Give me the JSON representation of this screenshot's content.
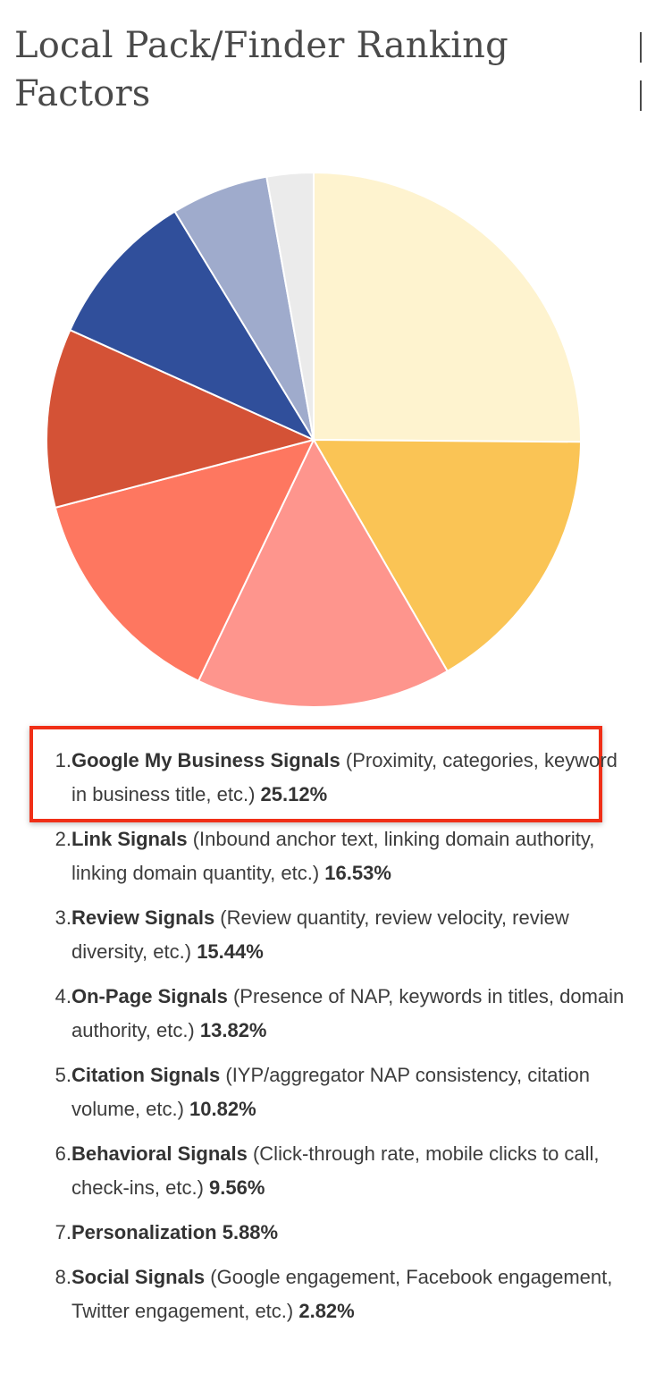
{
  "title": "Local Pack/Finder Ranking Factors",
  "colors": {
    "highlight": "#f02f17",
    "slices": [
      "#fef3cf",
      "#fac455",
      "#fe958d",
      "#fe7760",
      "#d45236",
      "#304f9b",
      "#9fabcc",
      "#ebebeb"
    ]
  },
  "chart_data": {
    "type": "pie",
    "title": "Local Pack/Finder Ranking Factors",
    "start_angle": "12 o'clock",
    "direction": "clockwise",
    "legend_placement": "below",
    "categories": [
      "Google My Business Signals",
      "Link Signals",
      "Review Signals",
      "On-Page Signals",
      "Citation Signals",
      "Behavioral Signals",
      "Personalization",
      "Social Signals"
    ],
    "values": [
      25.12,
      16.53,
      15.44,
      13.82,
      10.82,
      9.56,
      5.88,
      2.82
    ],
    "unit": "%"
  },
  "factors": [
    {
      "num": "1.",
      "name": "Google My Business Signals",
      "desc": " (Proximity, categories, keyword in business title, etc.) ",
      "pct": "25.12%"
    },
    {
      "num": "2.",
      "name": "Link Signals",
      "desc": " (Inbound anchor text, linking domain authority, linking domain quantity, etc.) ",
      "pct": "16.53%"
    },
    {
      "num": "3.",
      "name": "Review Signals",
      "desc": " (Review quantity, review velocity, review diversity, etc.) ",
      "pct": "15.44%"
    },
    {
      "num": "4.",
      "name": "On-Page Signals",
      "desc": " (Presence of NAP, keywords in titles, domain authority, etc.) ",
      "pct": "13.82%"
    },
    {
      "num": "5.",
      "name": "Citation Signals",
      "desc": " (IYP/aggregator NAP consistency, citation volume, etc.) ",
      "pct": "10.82%"
    },
    {
      "num": "6.",
      "name": "Behavioral Signals",
      "desc": " (Click-through rate, mobile clicks to call, check-ins, etc.) ",
      "pct": "9.56%"
    },
    {
      "num": "7.",
      "name": "Personalization",
      "desc": "  ",
      "pct": "5.88%"
    },
    {
      "num": "8.",
      "name": "Social Signals",
      "desc": " (Google engagement, Facebook engagement, Twitter engagement, etc.) ",
      "pct": "2.82%"
    }
  ]
}
